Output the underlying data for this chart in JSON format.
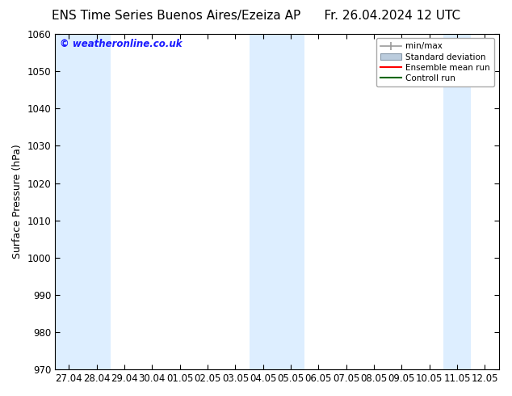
{
  "title_left": "ENS Time Series Buenos Aires/Ezeiza AP",
  "title_right": "Fr. 26.04.2024 12 UTC",
  "ylabel": "Surface Pressure (hPa)",
  "ylim": [
    970,
    1060
  ],
  "yticks": [
    970,
    980,
    990,
    1000,
    1010,
    1020,
    1030,
    1040,
    1050,
    1060
  ],
  "x_labels": [
    "27.04",
    "28.04",
    "29.04",
    "30.04",
    "01.05",
    "02.05",
    "03.05",
    "04.05",
    "05.05",
    "06.05",
    "07.05",
    "08.05",
    "09.05",
    "10.05",
    "11.05",
    "12.05"
  ],
  "shaded_indices": [
    0,
    1,
    7,
    8,
    14
  ],
  "band_color": "#ddeeff",
  "background_color": "#ffffff",
  "watermark": "© weatheronline.co.uk",
  "watermark_color": "#1a1aff",
  "legend_labels": [
    "min/max",
    "Standard deviation",
    "Ensemble mean run",
    "Controll run"
  ],
  "title_fontsize": 11,
  "axis_label_fontsize": 9,
  "tick_fontsize": 8.5
}
